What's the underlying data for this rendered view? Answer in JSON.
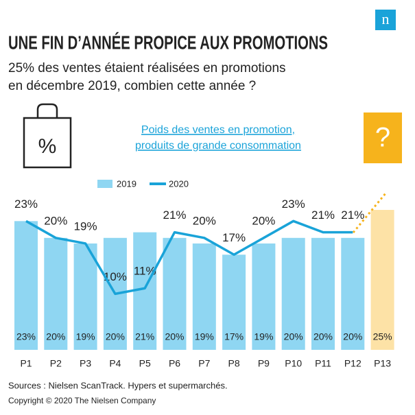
{
  "chart_data": {
    "type": "bar",
    "logo": "n",
    "title": "UNE FIN D’ANNÉE PROPICE AUX PROMOTIONS",
    "subtitle": [
      "25% des ventes étaient réalisées en promotions",
      "en décembre 2019, combien cette année ?"
    ],
    "bag_label": "%",
    "question": "?",
    "chart_subtitle": [
      "Poids des ventes en promotion,",
      "produits de grande consommation"
    ],
    "categories": [
      "P1",
      "P2",
      "P3",
      "P4",
      "P5",
      "P6",
      "P7",
      "P8",
      "P9",
      "P10",
      "P11",
      "P12",
      "P13"
    ],
    "series": [
      {
        "name": "2019",
        "type": "bar",
        "color": "#8fd6f2",
        "colors": [
          "#8fd6f2",
          "#8fd6f2",
          "#8fd6f2",
          "#8fd6f2",
          "#8fd6f2",
          "#8fd6f2",
          "#8fd6f2",
          "#8fd6f2",
          "#8fd6f2",
          "#8fd6f2",
          "#8fd6f2",
          "#8fd6f2",
          "#fde2a6"
        ],
        "values": [
          23,
          20,
          19,
          20,
          21,
          20,
          19,
          17,
          19,
          20,
          20,
          20,
          25
        ],
        "value_labels": [
          "23%",
          "20%",
          "19%",
          "20%",
          "21%",
          "20%",
          "19%",
          "17%",
          "19%",
          "20%",
          "20%",
          "20%",
          "25%"
        ]
      },
      {
        "name": "2020",
        "type": "line",
        "color": "#19a3d8",
        "values": [
          23,
          20,
          19,
          10,
          11,
          21,
          20,
          17,
          20,
          23,
          21,
          21,
          null
        ],
        "value_labels": [
          "23%",
          "20%",
          "19%",
          "10%",
          "11%",
          "21%",
          "20%",
          "17%",
          "20%",
          "23%",
          "21%",
          "21%",
          null
        ]
      }
    ],
    "ylim": [
      0,
      25
    ],
    "sources": "Sources : Nielsen ScanTrack. Hypers et supermarchés.",
    "copyright": "Copyright © 2020 The Nielsen Company"
  }
}
